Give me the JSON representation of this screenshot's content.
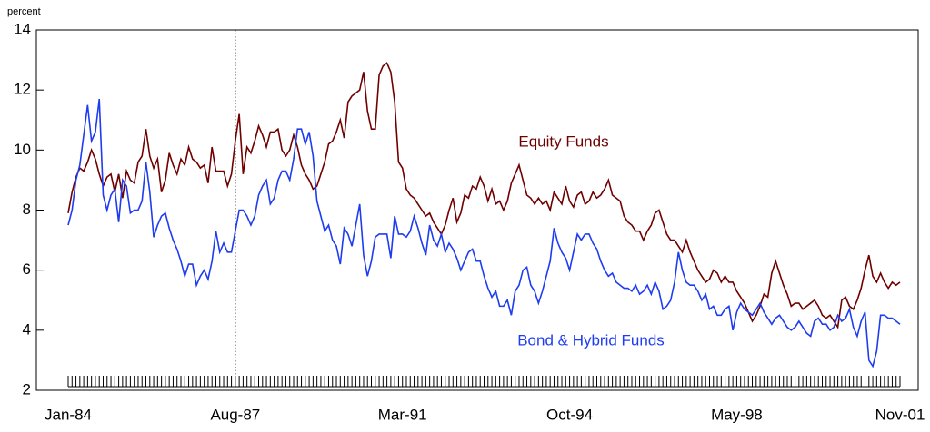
{
  "chart_data": {
    "type": "line",
    "y_label": "percent",
    "ylim": [
      2,
      14
    ],
    "yticks": [
      2,
      4,
      6,
      8,
      10,
      12,
      14
    ],
    "reference_line": {
      "x": "Aug-87"
    },
    "annotations": [
      {
        "text": "Equity Funds",
        "series": 0
      },
      {
        "text": "Bond & Hybrid  Funds",
        "series": 1
      }
    ],
    "categories": [
      "Jan-84",
      null,
      null,
      null,
      null,
      null,
      null,
      null,
      null,
      null,
      null,
      null,
      null,
      null,
      null,
      null,
      null,
      null,
      null,
      null,
      null,
      null,
      null,
      null,
      null,
      null,
      null,
      null,
      null,
      null,
      null,
      null,
      null,
      null,
      null,
      null,
      null,
      null,
      null,
      null,
      null,
      null,
      null,
      "Aug-87",
      null,
      null,
      null,
      null,
      null,
      null,
      null,
      null,
      null,
      null,
      null,
      null,
      null,
      null,
      null,
      null,
      null,
      null,
      null,
      null,
      null,
      null,
      null,
      null,
      null,
      null,
      null,
      null,
      null,
      null,
      null,
      null,
      null,
      null,
      null,
      null,
      null,
      null,
      null,
      null,
      null,
      null,
      "Mar-91",
      null,
      null,
      null,
      null,
      null,
      null,
      null,
      null,
      null,
      null,
      null,
      null,
      null,
      null,
      null,
      null,
      null,
      null,
      null,
      null,
      null,
      null,
      null,
      null,
      null,
      null,
      null,
      null,
      null,
      null,
      null,
      null,
      null,
      null,
      null,
      null,
      null,
      null,
      null,
      null,
      null,
      null,
      "Oct-94",
      null,
      null,
      null,
      null,
      null,
      null,
      null,
      null,
      null,
      null,
      null,
      null,
      null,
      null,
      null,
      null,
      null,
      null,
      null,
      null,
      null,
      null,
      null,
      null,
      null,
      null,
      null,
      null,
      null,
      null,
      null,
      null,
      null,
      null,
      null,
      null,
      null,
      null,
      null,
      null,
      null,
      null,
      "May-98",
      null,
      null,
      null,
      null,
      null,
      null,
      null,
      null,
      null,
      null,
      null,
      null,
      null,
      null,
      null,
      null,
      null,
      null,
      null,
      null,
      null,
      null,
      null,
      null,
      null,
      null,
      null,
      null,
      null,
      null,
      null,
      null,
      null,
      null,
      null,
      null,
      null,
      null,
      null,
      null,
      null,
      "Nov-01"
    ],
    "series": [
      {
        "name": "Equity Funds",
        "color": "#700000",
        "values": [
          7.9,
          8.6,
          9.1,
          9.4,
          9.3,
          9.6,
          10.0,
          9.7,
          9.2,
          8.8,
          9.1,
          9.2,
          8.6,
          9.2,
          8.4,
          9.3,
          9.0,
          8.9,
          9.6,
          9.8,
          10.7,
          9.8,
          9.4,
          9.7,
          8.6,
          9.0,
          9.9,
          9.5,
          9.2,
          9.7,
          9.5,
          10.1,
          9.7,
          9.6,
          9.4,
          9.5,
          8.9,
          10.1,
          9.3,
          9.3,
          9.3,
          8.8,
          9.2,
          10.3,
          11.2,
          9.2,
          10.1,
          9.9,
          10.3,
          10.8,
          10.5,
          10.1,
          10.6,
          10.6,
          10.7,
          10.0,
          9.8,
          10.0,
          10.5,
          10.1,
          9.5,
          9.2,
          9.0,
          8.7,
          8.8,
          9.2,
          9.6,
          10.2,
          10.3,
          10.6,
          11.0,
          10.4,
          11.6,
          11.8,
          11.9,
          12.0,
          12.6,
          11.3,
          10.7,
          10.7,
          12.5,
          12.8,
          12.9,
          12.6,
          11.6,
          9.6,
          9.4,
          8.7,
          8.5,
          8.4,
          8.2,
          8.0,
          7.8,
          7.9,
          7.6,
          7.4,
          7.2,
          7.5,
          8.0,
          8.4,
          7.6,
          7.9,
          8.5,
          8.4,
          8.8,
          8.7,
          9.1,
          8.8,
          8.3,
          8.7,
          8.2,
          8.3,
          8.0,
          8.3,
          8.9,
          9.2,
          9.5,
          9.0,
          8.5,
          8.4,
          8.2,
          8.4,
          8.2,
          8.3,
          8.0,
          8.6,
          8.4,
          8.2,
          8.8,
          8.3,
          8.1,
          8.5,
          8.6,
          8.2,
          8.3,
          8.6,
          8.4,
          8.5,
          8.7,
          9.0,
          8.5,
          8.4,
          8.3,
          7.8,
          7.6,
          7.5,
          7.3,
          7.3,
          7.0,
          7.3,
          7.5,
          7.9,
          8.0,
          7.6,
          7.2,
          7.0,
          7.0,
          6.8,
          6.6,
          7.0,
          6.6,
          6.3,
          6.0,
          5.8,
          5.6,
          5.7,
          6.0,
          5.9,
          5.6,
          5.8,
          5.6,
          5.6,
          5.3,
          5.1,
          4.9,
          4.6,
          4.3,
          4.5,
          4.8,
          5.2,
          5.1,
          5.9,
          6.3,
          5.9,
          5.5,
          5.2,
          4.8,
          4.9,
          4.9,
          4.7,
          4.8,
          4.9,
          5.0,
          4.8,
          4.5,
          4.4,
          4.5,
          4.3,
          4.1,
          5.0,
          5.1,
          4.8,
          4.7,
          5.0,
          5.4,
          6.0,
          6.5,
          5.8,
          5.6,
          5.9,
          5.6,
          5.4,
          5.6,
          5.5,
          5.6
        ]
      },
      {
        "name": "Bond & Hybrid  Funds",
        "color": "#1E3CF0",
        "values": [
          7.5,
          8.0,
          9.0,
          9.5,
          10.5,
          11.5,
          10.3,
          10.6,
          11.7,
          8.5,
          8.0,
          8.5,
          8.7,
          7.6,
          9.0,
          8.8,
          7.9,
          8.0,
          8.0,
          8.3,
          9.6,
          8.6,
          7.1,
          7.5,
          7.8,
          7.9,
          7.4,
          7.0,
          6.7,
          6.3,
          5.8,
          6.2,
          6.2,
          5.5,
          5.8,
          6.0,
          5.7,
          6.3,
          7.3,
          6.6,
          6.9,
          6.6,
          6.6,
          7.3,
          8.0,
          8.0,
          7.8,
          7.5,
          7.8,
          8.5,
          8.8,
          9.0,
          8.2,
          8.4,
          9.0,
          9.3,
          9.3,
          9.0,
          9.7,
          10.7,
          10.7,
          10.2,
          10.6,
          9.8,
          8.3,
          7.8,
          7.3,
          7.5,
          7.0,
          6.8,
          6.2,
          7.4,
          7.2,
          6.8,
          7.5,
          8.2,
          6.5,
          5.8,
          6.3,
          7.1,
          7.2,
          7.2,
          7.2,
          6.4,
          7.8,
          7.2,
          7.2,
          7.1,
          7.3,
          7.8,
          7.4,
          6.9,
          6.5,
          7.5,
          7.0,
          6.8,
          7.2,
          6.6,
          6.9,
          6.7,
          6.4,
          6.0,
          6.3,
          6.6,
          6.7,
          6.3,
          6.3,
          5.8,
          5.4,
          5.1,
          5.3,
          4.8,
          4.8,
          5.0,
          4.5,
          5.3,
          5.5,
          6.0,
          6.1,
          5.5,
          5.3,
          4.9,
          5.3,
          5.8,
          6.3,
          7.4,
          6.9,
          6.6,
          6.4,
          6.0,
          6.6,
          7.2,
          7.0,
          7.2,
          7.2,
          6.9,
          6.7,
          6.3,
          6.0,
          5.8,
          5.9,
          5.6,
          5.5,
          5.4,
          5.4,
          5.3,
          5.5,
          5.2,
          5.3,
          5.5,
          5.2,
          5.6,
          5.3,
          4.7,
          4.8,
          5.0,
          5.6,
          6.6,
          6.0,
          5.6,
          5.5,
          5.5,
          5.3,
          5.0,
          5.2,
          4.7,
          4.8,
          4.5,
          4.5,
          4.7,
          4.8,
          4.0,
          4.6,
          4.9,
          4.7,
          4.6,
          4.5,
          4.7,
          4.9,
          4.6,
          4.4,
          4.2,
          4.4,
          4.5,
          4.3,
          4.1,
          4.0,
          4.1,
          4.3,
          4.1,
          3.9,
          3.8,
          4.3,
          4.4,
          4.2,
          4.2,
          4.0,
          4.1,
          4.5,
          4.3,
          4.4,
          4.7,
          4.1,
          3.8,
          4.3,
          4.6,
          3.0,
          2.8,
          3.3,
          4.5,
          4.5,
          4.4,
          4.4,
          4.3,
          4.2
        ]
      }
    ]
  }
}
